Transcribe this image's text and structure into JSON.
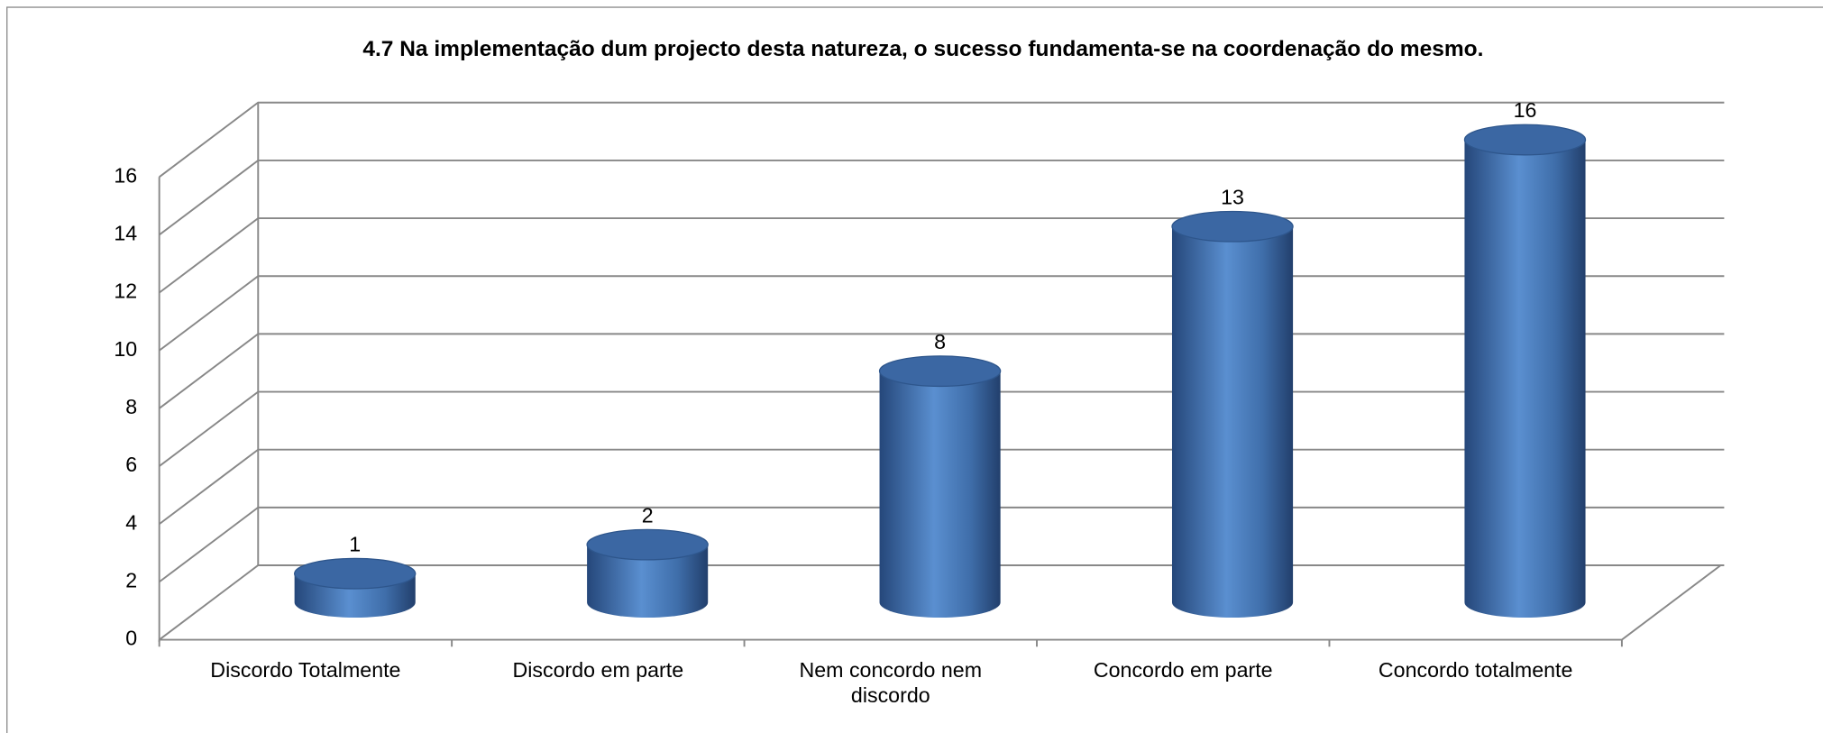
{
  "chart_data": {
    "type": "bar",
    "title": "4.7 Na implementação dum projecto desta natureza, o sucesso fundamenta-se na coordenação do mesmo.",
    "categories": [
      "Discordo Totalmente",
      "Discordo em parte",
      "Nem concordo nem discordo",
      "Concordo em parte",
      "Concordo totalmente"
    ],
    "values": [
      1,
      2,
      8,
      13,
      16
    ],
    "color": "#4f81bd",
    "ylim": [
      0,
      16
    ],
    "yticks": [
      0,
      2,
      4,
      6,
      8,
      10,
      12,
      14,
      16
    ],
    "grid": true
  }
}
